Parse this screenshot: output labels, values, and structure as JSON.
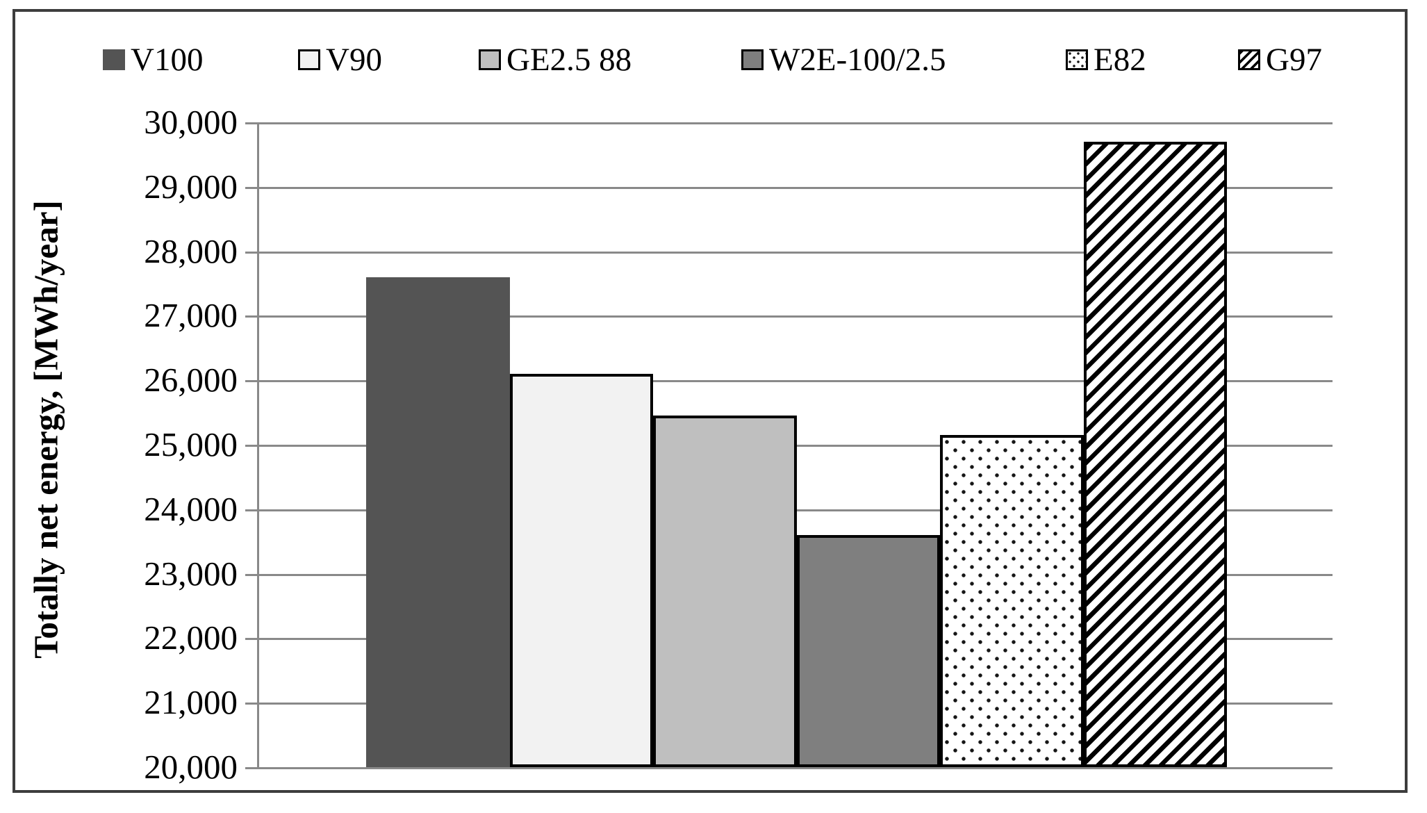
{
  "figure": {
    "background": "#ffffff",
    "border_color": "#3d3d3d",
    "gridline_color": "#898989"
  },
  "chart_data": {
    "type": "bar",
    "title": "",
    "xlabel": "",
    "ylabel": "Totally net energy, [MWh/year]",
    "ylim": [
      20000,
      30000
    ],
    "ytick_step": 1000,
    "ytick_labels": [
      "30,000",
      "29,000",
      "28,000",
      "27,000",
      "26,000",
      "25,000",
      "24,000",
      "23,000",
      "22,000",
      "21,000",
      "20,000"
    ],
    "grid": true,
    "legend_position": "top",
    "series": [
      {
        "name": "V100",
        "value": 27600,
        "fill": "#545454",
        "pattern": "solid",
        "border": false
      },
      {
        "name": "V90",
        "value": 26100,
        "fill": "#f2f2f2",
        "pattern": "solid",
        "border": true
      },
      {
        "name": "GE2.5 88",
        "value": 25450,
        "fill": "#bfbfbf",
        "pattern": "solid",
        "border": true
      },
      {
        "name": "W2E-100/2.5",
        "value": 23600,
        "fill": "#7f7f7f",
        "pattern": "solid",
        "border": true
      },
      {
        "name": "E82",
        "value": 25150,
        "fill": "#ffffff",
        "pattern": "dots",
        "border": true
      },
      {
        "name": "G97",
        "value": 29700,
        "fill": "#ffffff",
        "pattern": "diagonal-stripes",
        "border": true
      }
    ]
  }
}
